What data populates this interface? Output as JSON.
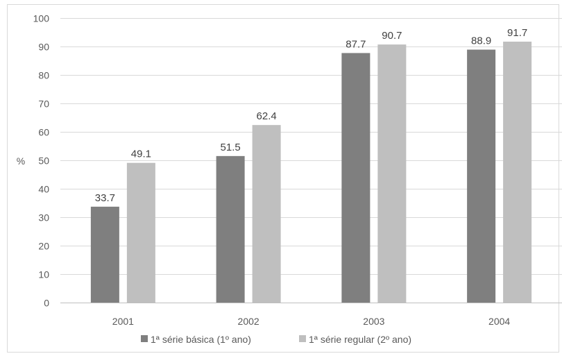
{
  "chart_data": {
    "type": "bar",
    "title": "",
    "xlabel": "",
    "ylabel": "%",
    "ylim": [
      0,
      100
    ],
    "yticks": [
      0,
      10,
      20,
      30,
      40,
      50,
      60,
      70,
      80,
      90,
      100
    ],
    "grid": true,
    "legend_position": "bottom",
    "categories": [
      "2001",
      "2002",
      "2003",
      "2004"
    ],
    "series": [
      {
        "name": "1ª série básica (1º ano)",
        "color": "#7f7f7f",
        "values": [
          33.7,
          51.5,
          87.7,
          88.9
        ]
      },
      {
        "name": "1ª série regular (2º ano)",
        "color": "#bfbfbf",
        "values": [
          49.1,
          62.4,
          90.7,
          91.7
        ]
      }
    ]
  }
}
